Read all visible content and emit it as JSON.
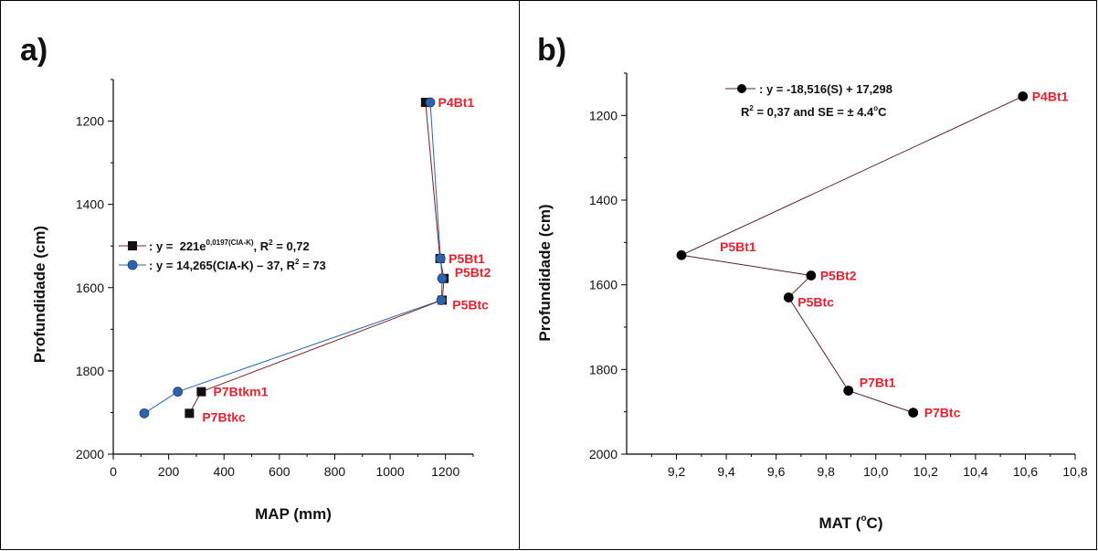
{
  "panel_a_letter": "a)",
  "panel_b_letter": "b)",
  "equations": {
    "a_line1_prefix": ": y =  221e",
    "a_line1_exp": "0,0197(CIA-K)",
    "a_line1_suffix": ", R",
    "a_line1_sup": "2",
    "a_line1_end": " = 0,72",
    "a_line2_prefix": ": y = 14,265(CIA-K) – 37, R",
    "a_line2_sup": "2",
    "a_line2_end": " = 73",
    "b_line1": ": y = -18,516(S) + 17,298",
    "b_line2_prefix": "R",
    "b_line2_sup": "2",
    "b_line2_mid": " = 0,37 and SE = ± 4.4",
    "b_line2_deg": "o",
    "b_line2_end": "C"
  },
  "chart_data": [
    {
      "type": "line",
      "panel": "a",
      "xlabel": "MAP (mm)",
      "ylabel": "Profundidade (cm)",
      "xlim": [
        0,
        1300
      ],
      "ylim": [
        2000,
        1100
      ],
      "y_inverted": true,
      "xticks": [
        0,
        200,
        400,
        600,
        800,
        1000,
        1200
      ],
      "yticks": [
        1200,
        1400,
        1600,
        1800,
        2000
      ],
      "point_labels": [
        {
          "text": "P4Bt1",
          "x": 1140,
          "y": 1155
        },
        {
          "text": "P5Bt1",
          "x": 1185,
          "y": 1530
        },
        {
          "text": "P5Bt2",
          "x": 1200,
          "y": 1578
        },
        {
          "text": "P5Btc",
          "x": 1192,
          "y": 1630
        },
        {
          "text": "P7Btkm1",
          "x": 315,
          "y": 1850
        },
        {
          "text": "P7Btkc",
          "x": 275,
          "y": 1902
        }
      ],
      "series": [
        {
          "marker": "square",
          "color": "#111111",
          "line_color": "#7a1c24",
          "x": [
            1128,
            1180,
            1195,
            1188,
            318,
            275
          ],
          "y": [
            1155,
            1530,
            1578,
            1630,
            1850,
            1902
          ]
        },
        {
          "marker": "circle",
          "color": "#2f62ad",
          "line_color": "#2f62ad",
          "x": [
            1145,
            1182,
            1188,
            1185,
            233,
            112
          ],
          "y": [
            1155,
            1530,
            1578,
            1630,
            1850,
            1902
          ]
        }
      ]
    },
    {
      "type": "line",
      "panel": "b",
      "xlabel": "MAT (°C)",
      "xlabel_main": "MAT (",
      "xlabel_deg": "o",
      "xlabel_end": "C)",
      "ylabel": "Profundidade (cm)",
      "xlim": [
        9.0,
        10.8
      ],
      "ylim": [
        2000,
        1100
      ],
      "y_inverted": true,
      "xticks": [
        "9,2",
        "9,4",
        "9,6",
        "9,8",
        "10,0",
        "10,2",
        "10,4",
        "10,6",
        "10,8"
      ],
      "yticks": [
        1200,
        1400,
        1600,
        1800,
        2000
      ],
      "point_labels": [
        {
          "text": "P4Bt1",
          "x": 10.59,
          "y": 1155
        },
        {
          "text": "P5Bt1",
          "x": 9.22,
          "y": 1530
        },
        {
          "text": "P5Bt2",
          "x": 9.74,
          "y": 1578
        },
        {
          "text": "P5Btc",
          "x": 9.65,
          "y": 1630
        },
        {
          "text": "P7Bt1",
          "x": 9.89,
          "y": 1850
        },
        {
          "text": "P7Btc",
          "x": 10.15,
          "y": 1902
        }
      ],
      "series": [
        {
          "marker": "circle",
          "color": "#000000",
          "line_color": "#5a1f25",
          "x": [
            10.59,
            9.22,
            9.74,
            9.65,
            9.89,
            10.15
          ],
          "y": [
            1155,
            1530,
            1578,
            1630,
            1850,
            1902
          ]
        }
      ]
    }
  ],
  "colors": {
    "label_red": "#e8212e",
    "blue": "#2f62ad",
    "black": "#111111"
  }
}
